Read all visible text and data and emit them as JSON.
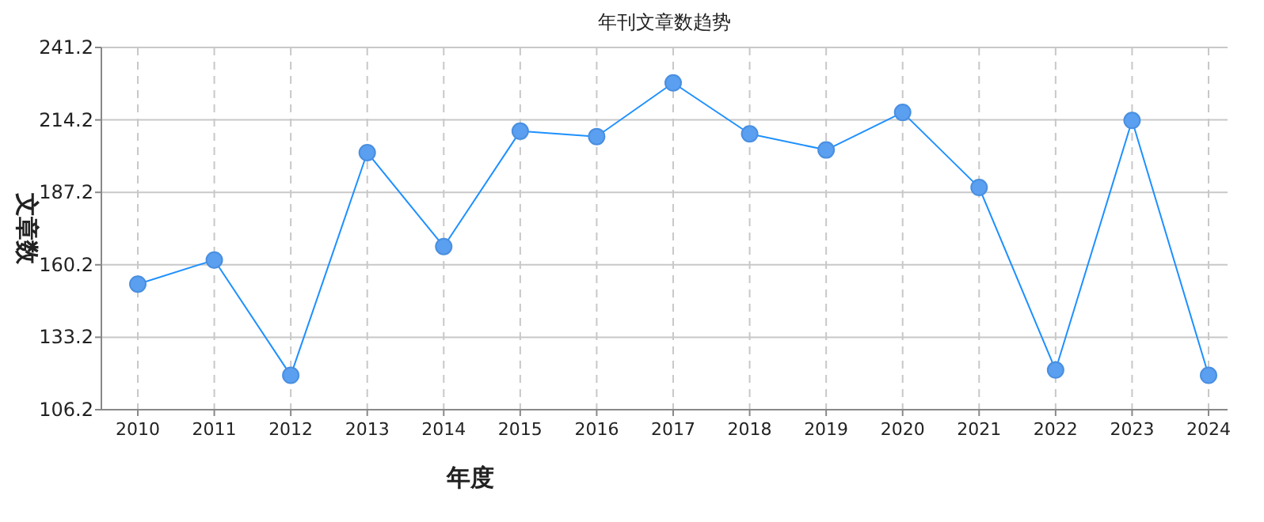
{
  "chart_data": {
    "type": "line",
    "title": "年刊文章数趋势",
    "xlabel": "年度",
    "ylabel": "文章数",
    "categories": [
      "2010",
      "2011",
      "2012",
      "2013",
      "2014",
      "2015",
      "2016",
      "2017",
      "2018",
      "2019",
      "2020",
      "2021",
      "2022",
      "2023",
      "2024"
    ],
    "series": [
      {
        "color": "#1e90ff",
        "values": [
          153,
          162,
          119,
          202,
          167,
          210,
          208,
          228,
          209,
          203,
          217,
          189,
          121,
          214,
          119
        ]
      }
    ],
    "ylim": [
      106.2,
      241.2
    ],
    "yticks": [
      106.2,
      133.2,
      160.2,
      187.2,
      214.2,
      241.2
    ],
    "grid": true,
    "marker": "circle",
    "line_style": "solid"
  }
}
